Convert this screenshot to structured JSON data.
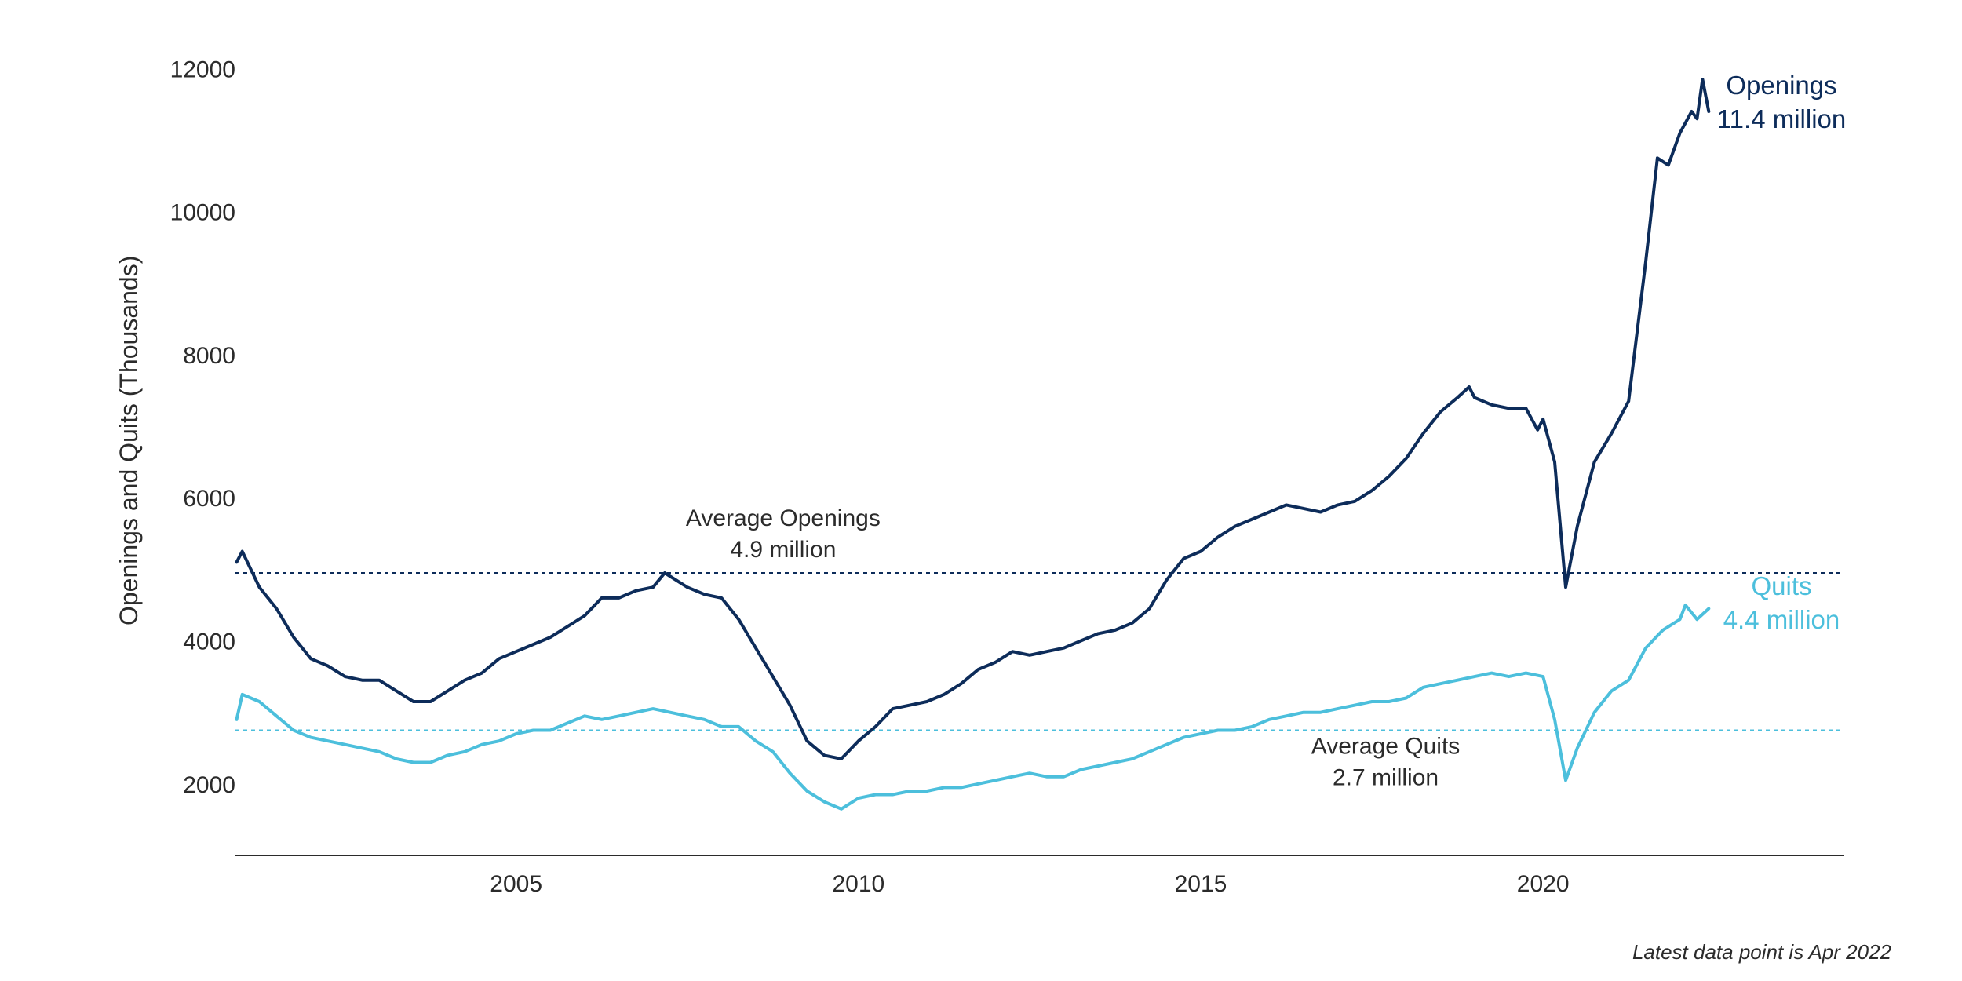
{
  "chart_data": {
    "type": "line",
    "title": "",
    "xlabel": "",
    "ylabel": "Openings and Quits (Thousands)",
    "xlim": [
      2000.9,
      2024.4
    ],
    "ylim": [
      1000,
      12300
    ],
    "x_ticks": [
      2005,
      2010,
      2015,
      2020
    ],
    "y_ticks": [
      2000,
      4000,
      6000,
      8000,
      10000,
      12000
    ],
    "grid": false,
    "colors": {
      "openings": "#0d2c5a",
      "quits": "#4cbfdc"
    },
    "series": [
      {
        "name": "Openings",
        "color": "#0d2c5a",
        "points": [
          [
            2000.917,
            5100
          ],
          [
            2001.0,
            5250
          ],
          [
            2001.25,
            4750
          ],
          [
            2001.5,
            4450
          ],
          [
            2001.75,
            4050
          ],
          [
            2002.0,
            3750
          ],
          [
            2002.25,
            3650
          ],
          [
            2002.5,
            3500
          ],
          [
            2002.75,
            3450
          ],
          [
            2003.0,
            3450
          ],
          [
            2003.25,
            3300
          ],
          [
            2003.5,
            3150
          ],
          [
            2003.75,
            3150
          ],
          [
            2004.0,
            3300
          ],
          [
            2004.25,
            3450
          ],
          [
            2004.5,
            3550
          ],
          [
            2004.75,
            3750
          ],
          [
            2005.0,
            3850
          ],
          [
            2005.25,
            3950
          ],
          [
            2005.5,
            4050
          ],
          [
            2005.75,
            4200
          ],
          [
            2006.0,
            4350
          ],
          [
            2006.25,
            4600
          ],
          [
            2006.5,
            4600
          ],
          [
            2006.75,
            4700
          ],
          [
            2007.0,
            4750
          ],
          [
            2007.17,
            4950
          ],
          [
            2007.5,
            4750
          ],
          [
            2007.75,
            4650
          ],
          [
            2008.0,
            4600
          ],
          [
            2008.25,
            4300
          ],
          [
            2008.5,
            3900
          ],
          [
            2008.75,
            3500
          ],
          [
            2009.0,
            3100
          ],
          [
            2009.25,
            2600
          ],
          [
            2009.5,
            2400
          ],
          [
            2009.75,
            2350
          ],
          [
            2010.0,
            2600
          ],
          [
            2010.25,
            2800
          ],
          [
            2010.5,
            3050
          ],
          [
            2010.75,
            3100
          ],
          [
            2011.0,
            3150
          ],
          [
            2011.25,
            3250
          ],
          [
            2011.5,
            3400
          ],
          [
            2011.75,
            3600
          ],
          [
            2012.0,
            3700
          ],
          [
            2012.25,
            3850
          ],
          [
            2012.5,
            3800
          ],
          [
            2012.75,
            3850
          ],
          [
            2013.0,
            3900
          ],
          [
            2013.25,
            4000
          ],
          [
            2013.5,
            4100
          ],
          [
            2013.75,
            4150
          ],
          [
            2014.0,
            4250
          ],
          [
            2014.25,
            4450
          ],
          [
            2014.5,
            4850
          ],
          [
            2014.75,
            5150
          ],
          [
            2015.0,
            5250
          ],
          [
            2015.25,
            5450
          ],
          [
            2015.5,
            5600
          ],
          [
            2015.75,
            5700
          ],
          [
            2016.0,
            5800
          ],
          [
            2016.25,
            5900
          ],
          [
            2016.5,
            5850
          ],
          [
            2016.75,
            5800
          ],
          [
            2017.0,
            5900
          ],
          [
            2017.25,
            5950
          ],
          [
            2017.5,
            6100
          ],
          [
            2017.75,
            6300
          ],
          [
            2018.0,
            6550
          ],
          [
            2018.25,
            6900
          ],
          [
            2018.5,
            7200
          ],
          [
            2018.75,
            7400
          ],
          [
            2018.92,
            7550
          ],
          [
            2019.0,
            7400
          ],
          [
            2019.25,
            7300
          ],
          [
            2019.5,
            7250
          ],
          [
            2019.75,
            7250
          ],
          [
            2019.92,
            6950
          ],
          [
            2020.0,
            7100
          ],
          [
            2020.17,
            6500
          ],
          [
            2020.33,
            4750
          ],
          [
            2020.5,
            5600
          ],
          [
            2020.75,
            6500
          ],
          [
            2021.0,
            6900
          ],
          [
            2021.25,
            7350
          ],
          [
            2021.5,
            9300
          ],
          [
            2021.67,
            10750
          ],
          [
            2021.83,
            10650
          ],
          [
            2022.0,
            11100
          ],
          [
            2022.17,
            11400
          ],
          [
            2022.25,
            11300
          ],
          [
            2022.33,
            11850
          ],
          [
            2022.42,
            11400
          ]
        ]
      },
      {
        "name": "Quits",
        "color": "#4cbfdc",
        "points": [
          [
            2000.917,
            2900
          ],
          [
            2001.0,
            3250
          ],
          [
            2001.25,
            3150
          ],
          [
            2001.5,
            2950
          ],
          [
            2001.75,
            2750
          ],
          [
            2002.0,
            2650
          ],
          [
            2002.25,
            2600
          ],
          [
            2002.5,
            2550
          ],
          [
            2002.75,
            2500
          ],
          [
            2003.0,
            2450
          ],
          [
            2003.25,
            2350
          ],
          [
            2003.5,
            2300
          ],
          [
            2003.75,
            2300
          ],
          [
            2004.0,
            2400
          ],
          [
            2004.25,
            2450
          ],
          [
            2004.5,
            2550
          ],
          [
            2004.75,
            2600
          ],
          [
            2005.0,
            2700
          ],
          [
            2005.25,
            2750
          ],
          [
            2005.5,
            2750
          ],
          [
            2005.75,
            2850
          ],
          [
            2006.0,
            2950
          ],
          [
            2006.25,
            2900
          ],
          [
            2006.5,
            2950
          ],
          [
            2006.75,
            3000
          ],
          [
            2007.0,
            3050
          ],
          [
            2007.25,
            3000
          ],
          [
            2007.5,
            2950
          ],
          [
            2007.75,
            2900
          ],
          [
            2008.0,
            2800
          ],
          [
            2008.25,
            2800
          ],
          [
            2008.5,
            2600
          ],
          [
            2008.75,
            2450
          ],
          [
            2009.0,
            2150
          ],
          [
            2009.25,
            1900
          ],
          [
            2009.5,
            1750
          ],
          [
            2009.75,
            1650
          ],
          [
            2010.0,
            1800
          ],
          [
            2010.25,
            1850
          ],
          [
            2010.5,
            1850
          ],
          [
            2010.75,
            1900
          ],
          [
            2011.0,
            1900
          ],
          [
            2011.25,
            1950
          ],
          [
            2011.5,
            1950
          ],
          [
            2011.75,
            2000
          ],
          [
            2012.0,
            2050
          ],
          [
            2012.25,
            2100
          ],
          [
            2012.5,
            2150
          ],
          [
            2012.75,
            2100
          ],
          [
            2013.0,
            2100
          ],
          [
            2013.25,
            2200
          ],
          [
            2013.5,
            2250
          ],
          [
            2013.75,
            2300
          ],
          [
            2014.0,
            2350
          ],
          [
            2014.25,
            2450
          ],
          [
            2014.5,
            2550
          ],
          [
            2014.75,
            2650
          ],
          [
            2015.0,
            2700
          ],
          [
            2015.25,
            2750
          ],
          [
            2015.5,
            2750
          ],
          [
            2015.75,
            2800
          ],
          [
            2016.0,
            2900
          ],
          [
            2016.25,
            2950
          ],
          [
            2016.5,
            3000
          ],
          [
            2016.75,
            3000
          ],
          [
            2017.0,
            3050
          ],
          [
            2017.25,
            3100
          ],
          [
            2017.5,
            3150
          ],
          [
            2017.75,
            3150
          ],
          [
            2018.0,
            3200
          ],
          [
            2018.25,
            3350
          ],
          [
            2018.5,
            3400
          ],
          [
            2018.75,
            3450
          ],
          [
            2019.0,
            3500
          ],
          [
            2019.25,
            3550
          ],
          [
            2019.5,
            3500
          ],
          [
            2019.75,
            3550
          ],
          [
            2020.0,
            3500
          ],
          [
            2020.17,
            2900
          ],
          [
            2020.33,
            2050
          ],
          [
            2020.5,
            2500
          ],
          [
            2020.75,
            3000
          ],
          [
            2021.0,
            3300
          ],
          [
            2021.25,
            3450
          ],
          [
            2021.5,
            3900
          ],
          [
            2021.75,
            4150
          ],
          [
            2022.0,
            4300
          ],
          [
            2022.08,
            4500
          ],
          [
            2022.25,
            4300
          ],
          [
            2022.42,
            4450
          ]
        ]
      }
    ],
    "reference_lines": [
      {
        "name": "Average Openings",
        "y": 4950,
        "color": "#0d2c5a",
        "label_line1": "Average Openings",
        "label_line2": "4.9 million",
        "label_x": 2008.9
      },
      {
        "name": "Average Quits",
        "y": 2750,
        "color": "#4cbfdc",
        "label_line1": "Average Quits",
        "label_line2": "2.7 million",
        "label_x": 2017.7
      }
    ],
    "end_labels": [
      {
        "line1": "Openings",
        "line2": "11.4 million",
        "color": "#0d2c5a"
      },
      {
        "line1": "Quits",
        "line2": "4.4 million",
        "color": "#4cbfdc"
      }
    ],
    "note": "Latest data point is Apr 2022"
  }
}
